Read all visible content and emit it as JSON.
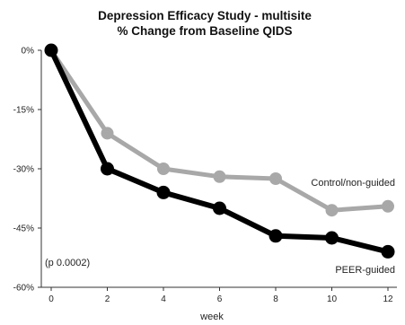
{
  "chart_data": {
    "type": "line",
    "title": "Depression Efficacy Study - multisite",
    "subtitle": "% Change from Baseline QIDS",
    "xlabel": "week",
    "ylabel": "",
    "x": [
      0,
      2,
      4,
      6,
      8,
      10,
      12
    ],
    "xlim": [
      0,
      12
    ],
    "ylim": [
      -60,
      0
    ],
    "x_ticks": [
      "0",
      "2",
      "4",
      "6",
      "8",
      "10",
      "12"
    ],
    "y_ticks": [
      {
        "value": 0,
        "label": "0%"
      },
      {
        "value": -15,
        "label": "-15%"
      },
      {
        "value": -30,
        "label": "-30%"
      },
      {
        "value": -45,
        "label": "-45%"
      },
      {
        "value": -60,
        "label": "-60%"
      }
    ],
    "grid": false,
    "legend": "inline labels at right",
    "series": [
      {
        "name": "Control/non-guided",
        "color": "#a8a8a8",
        "values": [
          0,
          -21,
          -30,
          -32,
          -32.5,
          -40.5,
          -39.5
        ]
      },
      {
        "name": "PEER-guided",
        "color": "#000000",
        "values": [
          0,
          -30,
          -36,
          -40,
          -47,
          -47.5,
          -51
        ]
      }
    ],
    "annotation": "(p 0.0002)"
  }
}
